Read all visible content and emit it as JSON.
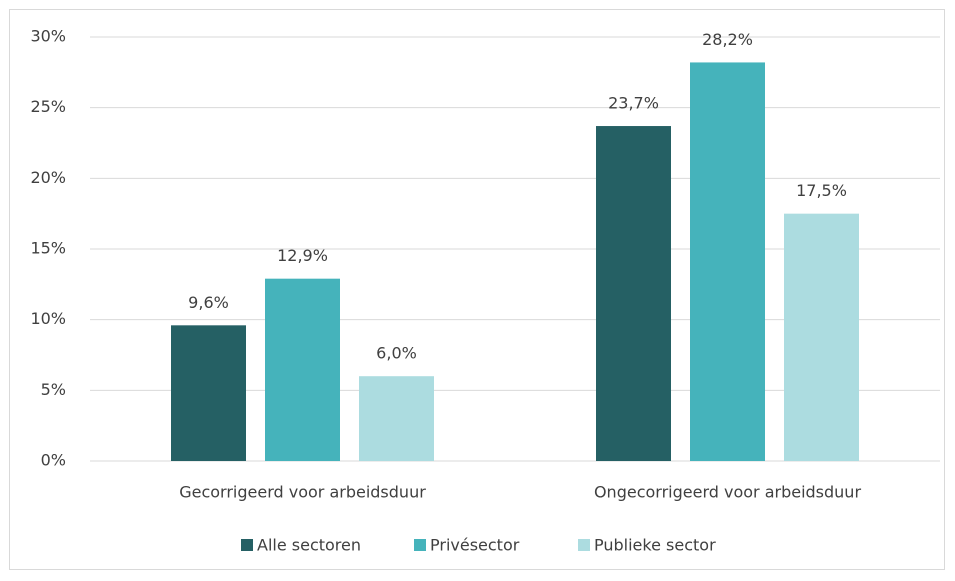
{
  "chart_data": {
    "type": "bar",
    "categories": [
      "Gecorrigeerd voor arbeidsduur",
      "Ongecorrigeerd voor arbeidsduur"
    ],
    "series": [
      {
        "name": "Alle sectoren",
        "color": "#256064",
        "values": [
          9.6,
          23.7
        ],
        "value_labels": [
          "9,6%",
          "23,7%"
        ]
      },
      {
        "name": "Privésector",
        "color": "#45b3bb",
        "values": [
          12.9,
          28.2
        ],
        "value_labels": [
          "12,9%",
          "28,2%"
        ]
      },
      {
        "name": "Publieke sector",
        "color": "#acdce0",
        "values": [
          6.0,
          17.5
        ],
        "value_labels": [
          "6,0%",
          "17,5%"
        ]
      }
    ],
    "ylim": [
      0,
      30
    ],
    "yticks": [
      {
        "value": 0,
        "label": "0%"
      },
      {
        "value": 5,
        "label": "5%"
      },
      {
        "value": 10,
        "label": "10%"
      },
      {
        "value": 15,
        "label": "15%"
      },
      {
        "value": 20,
        "label": "20%"
      },
      {
        "value": 25,
        "label": "25%"
      },
      {
        "value": 30,
        "label": "30%"
      }
    ],
    "grid": true,
    "legend": "bottom"
  }
}
